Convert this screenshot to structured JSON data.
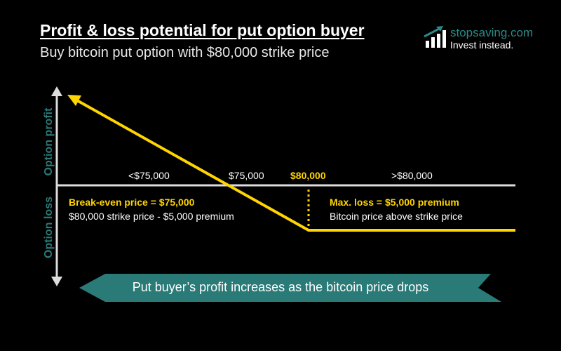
{
  "header": {
    "title": "Profit & loss potential for put option buyer",
    "subtitle": "Buy bitcoin put option with $80,000 strike price"
  },
  "logo": {
    "brand": "stopsaving.com",
    "tagline": "Invest instead."
  },
  "axes": {
    "y_top": "Option profit",
    "y_bottom": "Option loss"
  },
  "price_labels": {
    "below": "<$75,000",
    "breakeven": "$75,000",
    "strike": "$80,000",
    "above": ">$80,000"
  },
  "annotations": {
    "breakeven_title": "Break-even price = $75,000",
    "breakeven_detail": "$80,000 strike price - $5,000 premium",
    "maxloss_title": "Max. loss = $5,000 premium",
    "maxloss_detail": "Bitcoin price above strike price"
  },
  "banner": "Put buyer’s profit increases as the bitcoin price drops",
  "colors": {
    "payoff": "#ffd400",
    "accent": "#2a7a78",
    "axis": "#dddddd"
  }
}
